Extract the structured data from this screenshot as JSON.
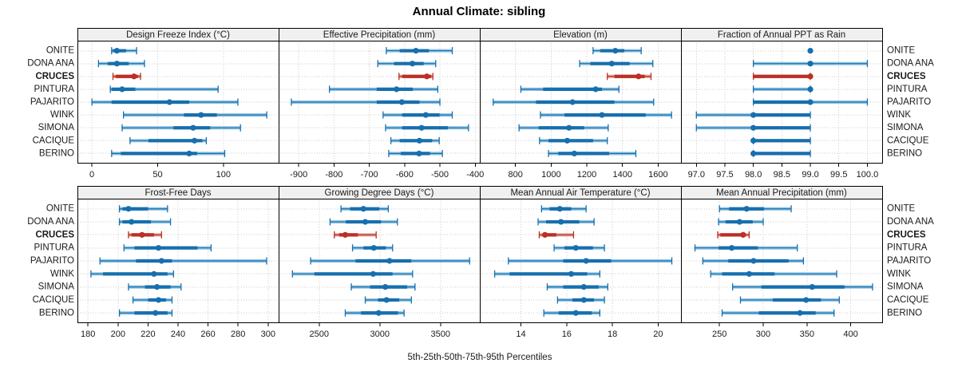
{
  "title": "Annual Climate: sibling",
  "footer": "5th-25th-50th-75th-95th Percentiles",
  "stations": [
    "ONITE",
    "DONA ANA",
    "CRUCES",
    "PINTURA",
    "PAJARITO",
    "WINK",
    "SIMONA",
    "CACIQUE",
    "BERINO"
  ],
  "highlight_station": "CRUCES",
  "colors": {
    "series_blue": "#176fae",
    "series_blue_light": "#92c5e2",
    "highlight_red": "#bb2f25",
    "highlight_red_light": "#e4a59e",
    "grid": "#c9c9c9",
    "header_bg": "#f0f0f0",
    "border": "#000000",
    "text": "#1a1a1a"
  },
  "chart_data": {
    "type": "interval",
    "orientation": "horizontal",
    "percentiles": [
      5,
      25,
      50,
      75,
      95
    ],
    "categories": [
      "ONITE",
      "DONA ANA",
      "CRUCES",
      "PINTURA",
      "PAJARITO",
      "WINK",
      "SIMONA",
      "CACIQUE",
      "BERINO"
    ],
    "highlight": "CRUCES",
    "grid": "dotted",
    "panels": [
      {
        "title": "Design Freeze Index (°C)",
        "row": 0,
        "col": 0,
        "xlim": [
          -11,
          142
        ],
        "ticks": [
          0,
          50,
          100
        ],
        "tick_labels": [
          "0",
          "50",
          "100"
        ],
        "values": [
          [
            15,
            16,
            19,
            26,
            34
          ],
          [
            5,
            12,
            19,
            28,
            40
          ],
          [
            16,
            18,
            32,
            35,
            37
          ],
          [
            14,
            15,
            23,
            33,
            96
          ],
          [
            0,
            15,
            59,
            74,
            111
          ],
          [
            24,
            70,
            83,
            95,
            133
          ],
          [
            23,
            62,
            77,
            90,
            113
          ],
          [
            29,
            43,
            78,
            84,
            87
          ],
          [
            15,
            22,
            74,
            80,
            101
          ]
        ]
      },
      {
        "title": "Effective Precipitation (mm)",
        "row": 0,
        "col": 1,
        "xlim": [
          -957,
          -387
        ],
        "ticks": [
          -900,
          -800,
          -700,
          -600,
          -500,
          -400
        ],
        "tick_labels": [
          "-900",
          "-800",
          "-700",
          "-600",
          "-500",
          "-400"
        ],
        "values": [
          [
            -652,
            -614,
            -568,
            -531,
            -465
          ],
          [
            -676,
            -630,
            -578,
            -546,
            -512
          ],
          [
            -616,
            -607,
            -537,
            -525,
            -520
          ],
          [
            -813,
            -679,
            -623,
            -577,
            -506
          ],
          [
            -921,
            -679,
            -608,
            -558,
            -500
          ],
          [
            -661,
            -607,
            -540,
            -501,
            -465
          ],
          [
            -654,
            -607,
            -552,
            -477,
            -419
          ],
          [
            -639,
            -614,
            -558,
            -522,
            -502
          ],
          [
            -645,
            -611,
            -559,
            -528,
            -493
          ]
        ]
      },
      {
        "title": "Elevation (m)",
        "row": 0,
        "col": 2,
        "xlim": [
          600,
          1728
        ],
        "ticks": [
          800,
          1000,
          1200,
          1400,
          1600
        ],
        "tick_labels": [
          "800",
          "1000",
          "1200",
          "1400",
          "1600"
        ],
        "values": [
          [
            1235,
            1275,
            1360,
            1410,
            1505
          ],
          [
            1160,
            1220,
            1340,
            1440,
            1570
          ],
          [
            1315,
            1355,
            1490,
            1525,
            1560
          ],
          [
            830,
            955,
            1250,
            1285,
            1380
          ],
          [
            675,
            915,
            1120,
            1355,
            1575
          ],
          [
            940,
            1075,
            1285,
            1530,
            1675
          ],
          [
            820,
            930,
            1100,
            1185,
            1320
          ],
          [
            935,
            985,
            1090,
            1235,
            1315
          ],
          [
            985,
            1040,
            1130,
            1325,
            1475
          ]
        ]
      },
      {
        "title": "Fraction of Annual PPT as Rain",
        "row": 0,
        "col": 3,
        "xlim": [
          96.73,
          100.26
        ],
        "ticks": [
          97,
          97.5,
          98,
          98.5,
          99,
          99.5,
          100
        ],
        "tick_labels": [
          "97.0",
          "97.5",
          "98.0",
          "98.5",
          "99.0",
          "99.5",
          "100.0"
        ],
        "values": [
          [
            99,
            99,
            99,
            99,
            99
          ],
          [
            98,
            99,
            99,
            99,
            100
          ],
          [
            98,
            98,
            99,
            99,
            99
          ],
          [
            98,
            99,
            99,
            99,
            99
          ],
          [
            98,
            98,
            99,
            99,
            100
          ],
          [
            97,
            98,
            98,
            99,
            99
          ],
          [
            97,
            98,
            98,
            99,
            99
          ],
          [
            98,
            98,
            98,
            99,
            99
          ],
          [
            98,
            98,
            98,
            99,
            99
          ]
        ]
      },
      {
        "title": "Frost-Free Days",
        "row": 1,
        "col": 0,
        "xlim": [
          173,
          307
        ],
        "ticks": [
          180,
          200,
          220,
          240,
          260,
          280,
          300
        ],
        "tick_labels": [
          "180",
          "200",
          "220",
          "240",
          "260",
          "280",
          "300"
        ],
        "values": [
          [
            201,
            203,
            207,
            220,
            233
          ],
          [
            201,
            203,
            209,
            222,
            235
          ],
          [
            207,
            209,
            216,
            224,
            229
          ],
          [
            204,
            211,
            227,
            253,
            262
          ],
          [
            188,
            212,
            229,
            236,
            299
          ],
          [
            182,
            190,
            224,
            233,
            237
          ],
          [
            207,
            218,
            226,
            235,
            242
          ],
          [
            210,
            220,
            227,
            232,
            236
          ],
          [
            201,
            211,
            225,
            233,
            236
          ]
        ]
      },
      {
        "title": "Growing Degree Days (°C)",
        "row": 1,
        "col": 1,
        "xlim": [
          2166,
          3824
        ],
        "ticks": [
          2500,
          3000,
          3500
        ],
        "tick_labels": [
          "2500",
          "3000",
          "3500"
        ],
        "values": [
          [
            2680,
            2755,
            2865,
            2995,
            3070
          ],
          [
            2590,
            2720,
            2880,
            3010,
            3145
          ],
          [
            2625,
            2665,
            2715,
            2820,
            2970
          ],
          [
            2775,
            2865,
            2950,
            3050,
            3105
          ],
          [
            2430,
            2800,
            3080,
            3260,
            3740
          ],
          [
            2280,
            2460,
            2945,
            3105,
            3270
          ],
          [
            2765,
            2920,
            3045,
            3225,
            3290
          ],
          [
            2880,
            2985,
            3055,
            3160,
            3260
          ],
          [
            2715,
            2845,
            2990,
            3150,
            3200
          ]
        ]
      },
      {
        "title": "Mean Annual Air Temperature (°C)",
        "row": 1,
        "col": 2,
        "xlim": [
          12.2,
          21.0
        ],
        "ticks": [
          14,
          16,
          18,
          20
        ],
        "tick_labels": [
          "14",
          "16",
          "18",
          "20"
        ],
        "values": [
          [
            14.9,
            15.25,
            15.7,
            16.2,
            16.85
          ],
          [
            14.75,
            15.1,
            15.75,
            16.55,
            17.2
          ],
          [
            14.8,
            14.95,
            15.05,
            15.55,
            16.3
          ],
          [
            15.45,
            15.9,
            16.4,
            17.15,
            17.65
          ],
          [
            13.45,
            15.85,
            16.85,
            17.95,
            20.6
          ],
          [
            12.85,
            13.5,
            16.2,
            16.9,
            17.45
          ],
          [
            15.15,
            15.85,
            16.75,
            17.4,
            17.8
          ],
          [
            15.6,
            16.25,
            16.75,
            17.2,
            17.65
          ],
          [
            15.0,
            15.65,
            16.4,
            17.1,
            17.45
          ]
        ]
      },
      {
        "title": "Mean Annual Precipitation (mm)",
        "row": 1,
        "col": 3,
        "xlim": [
          206,
          436
        ],
        "ticks": [
          250,
          300,
          350,
          400
        ],
        "tick_labels": [
          "250",
          "300",
          "350",
          "400"
        ],
        "values": [
          [
            250,
            261,
            281,
            301,
            332
          ],
          [
            249,
            257,
            273,
            288,
            300
          ],
          [
            248,
            251,
            277,
            280,
            284
          ],
          [
            222,
            249,
            264,
            294,
            339
          ],
          [
            231,
            260,
            289,
            329,
            346
          ],
          [
            240,
            253,
            284,
            313,
            384
          ],
          [
            265,
            298,
            356,
            393,
            425
          ],
          [
            274,
            311,
            349,
            366,
            387
          ],
          [
            253,
            295,
            342,
            360,
            381
          ]
        ]
      }
    ]
  }
}
